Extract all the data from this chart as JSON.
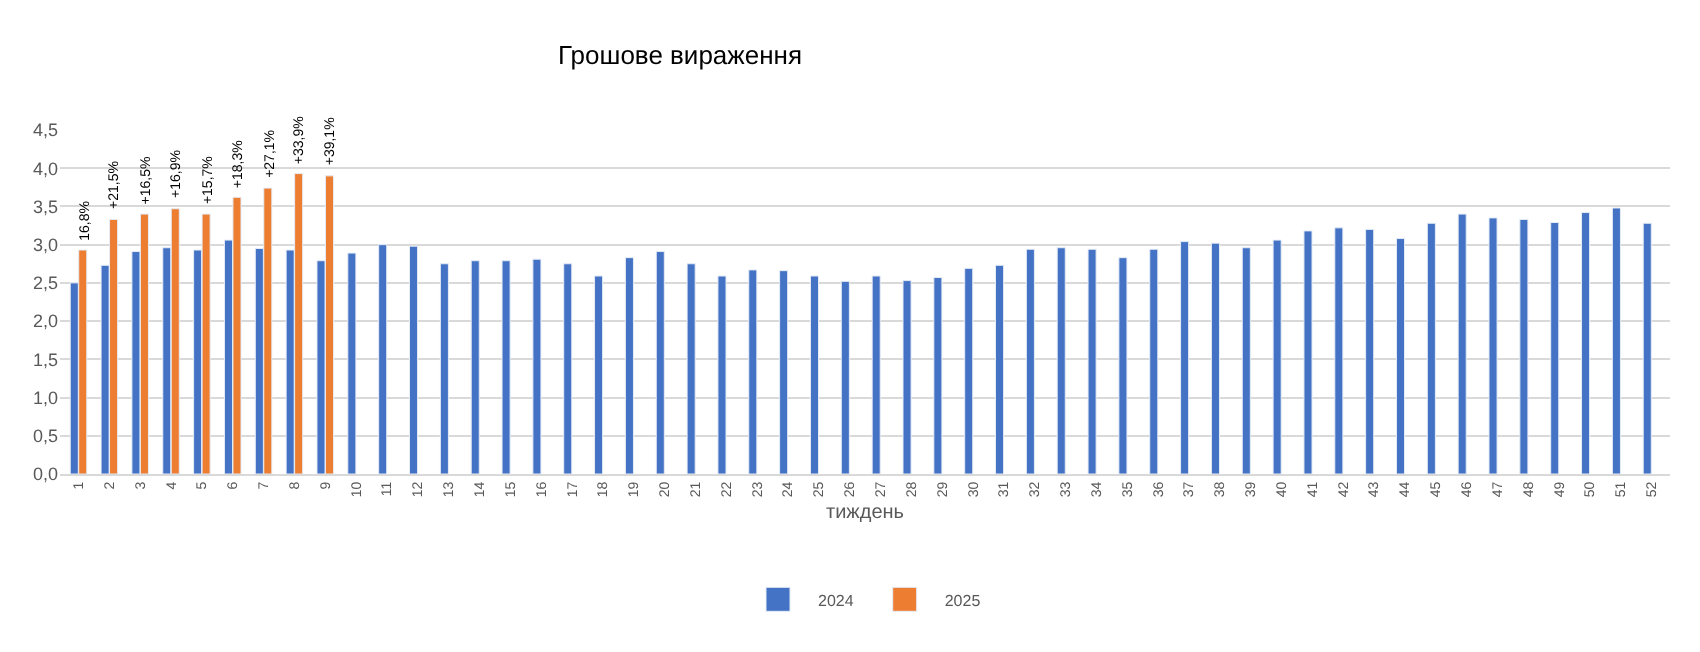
{
  "chart_data": {
    "type": "bar",
    "title": "Грошове вираження",
    "xlabel": "тиждень",
    "annotations": [
      {
        "text": "16,8%",
        "x": "1",
        "y": 2.93
      },
      {
        "text": "+21,5%",
        "x": "2",
        "y": 3.33
      },
      {
        "text": "+16,5%",
        "x": "3",
        "y": 3.4
      },
      {
        "text": "+16,9%",
        "x": "4",
        "y": 3.47
      },
      {
        "text": "+15,7%",
        "x": "5",
        "y": 3.4
      },
      {
        "text": "+18,3%",
        "x": "6",
        "y": 3.62
      },
      {
        "text": "+27,1%",
        "x": "7",
        "y": 3.74
      },
      {
        "text": "+33,9%",
        "x": "8",
        "y": 3.93
      },
      {
        "text": "+39,1%",
        "x": "9",
        "y": 3.9
      }
    ],
    "categories": [
      "1",
      "2",
      "3",
      "4",
      "5",
      "6",
      "7",
      "8",
      "9",
      "10",
      "11",
      "12",
      "13",
      "14",
      "15",
      "16",
      "17",
      "18",
      "19",
      "20",
      "21",
      "22",
      "23",
      "24",
      "25",
      "26",
      "27",
      "28",
      "29",
      "30",
      "31",
      "32",
      "33",
      "34",
      "35",
      "36",
      "37",
      "38",
      "39",
      "40",
      "41",
      "42",
      "43",
      "44",
      "45",
      "46",
      "47",
      "48",
      "49",
      "50",
      "51",
      "52"
    ],
    "series": [
      {
        "name": "2024",
        "color": "#4472c4",
        "values": [
          2.5,
          2.73,
          2.91,
          2.96,
          2.93,
          3.06,
          2.95,
          2.93,
          2.79,
          2.89,
          3.0,
          2.98,
          2.75,
          2.79,
          2.79,
          2.81,
          2.75,
          2.59,
          2.83,
          2.91,
          2.75,
          2.59,
          2.67,
          2.66,
          2.59,
          2.52,
          2.59,
          2.53,
          2.57,
          2.69,
          2.73,
          2.94,
          2.96,
          2.94,
          2.83,
          2.94,
          3.04,
          3.02,
          2.96,
          3.06,
          3.18,
          3.22,
          3.2,
          3.08,
          3.28,
          3.4,
          3.35,
          3.33,
          3.29,
          3.42,
          3.48,
          3.28
        ]
      },
      {
        "name": "2025",
        "color": "#ed7d31",
        "values": [
          2.93,
          3.33,
          3.4,
          3.47,
          3.4,
          3.62,
          3.74,
          3.93,
          3.9,
          null,
          null,
          null,
          null,
          null,
          null,
          null,
          null,
          null,
          null,
          null,
          null,
          null,
          null,
          null,
          null,
          null,
          null,
          null,
          null,
          null,
          null,
          null,
          null,
          null,
          null,
          null,
          null,
          null,
          null,
          null,
          null,
          null,
          null,
          null,
          null,
          null,
          null,
          null,
          null,
          null,
          null,
          null
        ]
      }
    ],
    "ylim": [
      0,
      4.5
    ],
    "yticks": [
      {
        "value": 0,
        "label": "0,0"
      },
      {
        "value": 0.5,
        "label": "0,5"
      },
      {
        "value": 1,
        "label": "1,0"
      },
      {
        "value": 1.5,
        "label": "1,5"
      },
      {
        "value": 2,
        "label": "2,0"
      },
      {
        "value": 2.5,
        "label": "2,5"
      },
      {
        "value": 3,
        "label": "3,0"
      },
      {
        "value": 3.5,
        "label": "3,5"
      },
      {
        "value": 4,
        "label": "4,0"
      },
      {
        "value": 4.5,
        "label": "4,5"
      }
    ],
    "grid": "y",
    "legend": "bottom"
  }
}
